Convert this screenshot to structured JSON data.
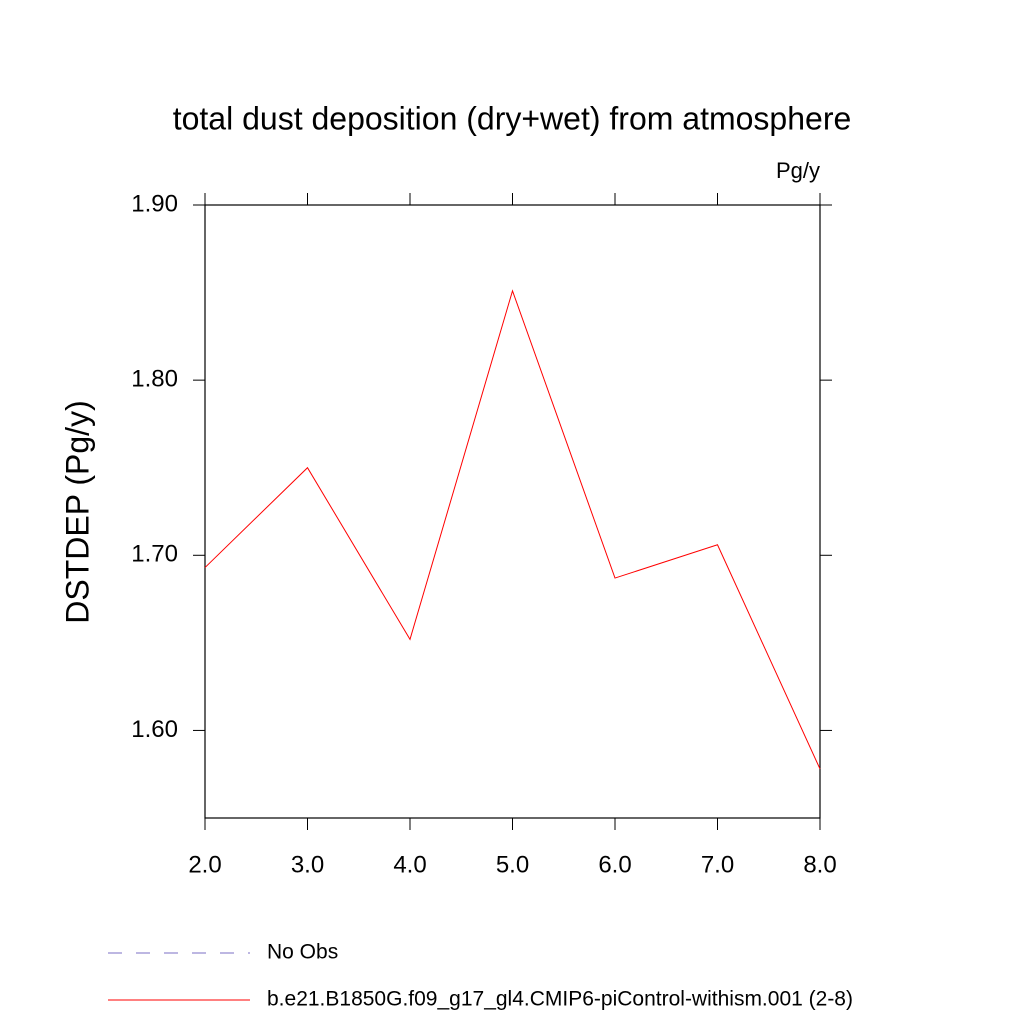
{
  "chart_data": {
    "type": "line",
    "title": "total dust deposition (dry+wet) from atmosphere",
    "units": "Pg/y",
    "y_label": "DSTDEP  (Pg/y)",
    "x": [
      2,
      3,
      4,
      5,
      6,
      7,
      8
    ],
    "series": [
      {
        "name": "No Obs",
        "color": "#7b6fc4",
        "dash": true,
        "values": [
          null,
          null,
          null,
          null,
          null,
          null,
          null
        ]
      },
      {
        "name": "b.e21.B1850G.f09_g17_gl4.CMIP6-piControl-withism.001 (2-8)",
        "color": "#ff0000",
        "dash": false,
        "values": [
          1.693,
          1.75,
          1.652,
          1.851,
          1.687,
          1.706,
          1.578
        ]
      }
    ],
    "xlim": [
      2,
      8
    ],
    "xticks": [
      {
        "value": 2,
        "label": "2.0"
      },
      {
        "value": 3,
        "label": "3.0"
      },
      {
        "value": 4,
        "label": "4.0"
      },
      {
        "value": 5,
        "label": "5.0"
      },
      {
        "value": 6,
        "label": "6.0"
      },
      {
        "value": 7,
        "label": "7.0"
      },
      {
        "value": 8,
        "label": "8.0"
      }
    ],
    "ylim": [
      1.55,
      1.9
    ],
    "yticks": [
      {
        "value": 1.6,
        "label": "1.60"
      },
      {
        "value": 1.7,
        "label": "1.70"
      },
      {
        "value": 1.8,
        "label": "1.80"
      },
      {
        "value": 1.9,
        "label": "1.90"
      }
    ]
  }
}
